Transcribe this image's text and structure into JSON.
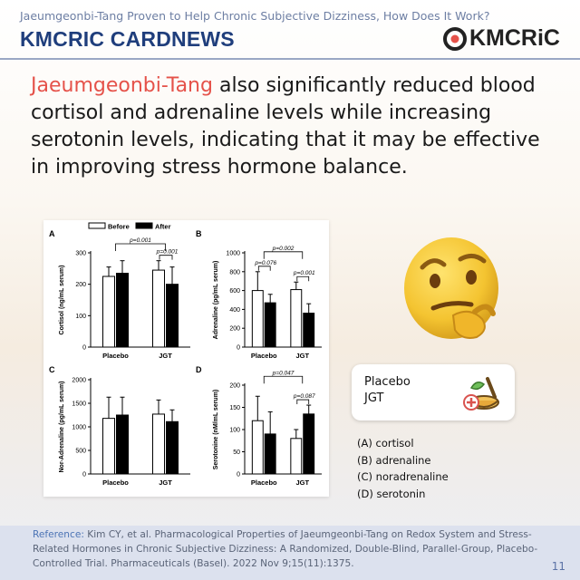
{
  "header": {
    "subtitle": "Jaeumgeonbi-Tang Proven to Help Chronic Subjective Dizziness, How Does It Work?",
    "title": "KMCRIC CARDNEWS",
    "logo_text": "KMCRiC"
  },
  "headline": {
    "highlight": "Jaeumgeonbi-Tang",
    "rest": " also significantly reduced blood cortisol and adrenaline levels while increasing serotonin levels, indicating that it may be effective in improving stress hormone balance."
  },
  "legend_box": {
    "line1": "Placebo",
    "line2": "JGT"
  },
  "panel_list": [
    "(A) cortisol",
    "(B) adrenaline",
    "(C) noradrenaline",
    "(D) serotonin"
  ],
  "reference": {
    "label": "Reference:",
    "text": " Kim CY, et al. Pharmacological Properties of Jaeumgeonbi-Tang on Redox System and Stress-Related Hormones in Chronic Subjective Dizziness: A Randomized, Double-Blind, Parallel-Group, Placebo-Controlled Trial. Pharmaceuticals (Basel). 2022 Nov 9;15(11):1375."
  },
  "page_number": "11",
  "colors": {
    "accent": "#e5524a",
    "brand": "#1f3e7c"
  },
  "chart_data": [
    {
      "type": "bar",
      "panel": "A",
      "ylabel": "Cortisol (ng/mL serum)",
      "categories": [
        "Placebo",
        "JGT"
      ],
      "ylim": [
        0,
        300
      ],
      "yticks": [
        0,
        100,
        200,
        300
      ],
      "legend": [
        "Before",
        "After"
      ],
      "series": [
        {
          "name": "Before",
          "values": [
            225,
            245
          ],
          "errors": [
            30,
            30
          ]
        },
        {
          "name": "After",
          "values": [
            235,
            200
          ],
          "errors": [
            40,
            55
          ]
        }
      ],
      "annotations": [
        {
          "text": "p=0.001",
          "between": "Placebo-JGT change"
        },
        {
          "text": "p=0.001",
          "between": "JGT Before-After"
        }
      ]
    },
    {
      "type": "bar",
      "panel": "B",
      "ylabel": "Adrenaline (pg/mL serum)",
      "categories": [
        "Placebo",
        "JGT"
      ],
      "ylim": [
        0,
        1000
      ],
      "yticks": [
        0,
        200,
        400,
        600,
        800,
        1000
      ],
      "series": [
        {
          "name": "Before",
          "values": [
            600,
            610
          ],
          "errors": [
            200,
            80
          ]
        },
        {
          "name": "After",
          "values": [
            470,
            360
          ],
          "errors": [
            90,
            100
          ]
        }
      ],
      "annotations": [
        {
          "text": "p=0.002",
          "between": "Placebo-JGT change"
        },
        {
          "text": "p=0.076",
          "between": "Placebo Before-After"
        },
        {
          "text": "p=0.001",
          "between": "JGT Before-After"
        }
      ]
    },
    {
      "type": "bar",
      "panel": "C",
      "ylabel": "Nor-Adrenaline (pg/mL serum)",
      "categories": [
        "Placebo",
        "JGT"
      ],
      "ylim": [
        0,
        2000
      ],
      "yticks": [
        0,
        500,
        1000,
        1500,
        2000
      ],
      "series": [
        {
          "name": "Before",
          "values": [
            1180,
            1270
          ],
          "errors": [
            450,
            300
          ]
        },
        {
          "name": "After",
          "values": [
            1250,
            1110
          ],
          "errors": [
            380,
            250
          ]
        }
      ],
      "annotations": []
    },
    {
      "type": "bar",
      "panel": "D",
      "ylabel": "Serotonine (nM/mL serum)",
      "categories": [
        "Placebo",
        "JGT"
      ],
      "ylim": [
        0,
        200
      ],
      "yticks": [
        0,
        50,
        100,
        150,
        200
      ],
      "series": [
        {
          "name": "Before",
          "values": [
            120,
            80
          ],
          "errors": [
            55,
            20
          ]
        },
        {
          "name": "After",
          "values": [
            90,
            135
          ],
          "errors": [
            50,
            20
          ]
        }
      ],
      "annotations": [
        {
          "text": "p=0.047",
          "between": "Placebo-JGT change"
        },
        {
          "text": "p=0.087",
          "between": "JGT Before-After"
        }
      ]
    }
  ]
}
